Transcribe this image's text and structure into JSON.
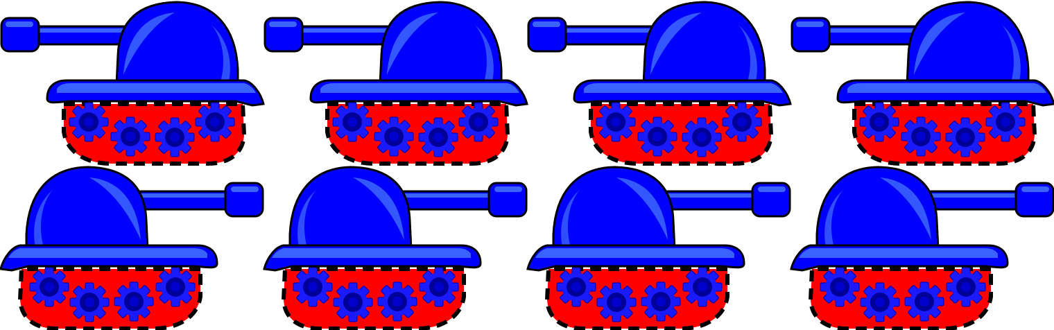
{
  "sheet": {
    "name": "tank-sprite-sheet",
    "frame_count": 8,
    "rows": 2,
    "columns": 4
  },
  "colors": {
    "background": "#ffffff",
    "outline": "#000000",
    "hull_blue": "#0000ff",
    "highlight_blue": "#3a62ff",
    "track_red": "#ff0000",
    "wheel_blue": "#1a1aff",
    "hub_navy": "#000099",
    "hub_center": "#0000cc"
  },
  "frames": [
    {
      "facing": "left"
    },
    {
      "facing": "left"
    },
    {
      "facing": "left"
    },
    {
      "facing": "left"
    },
    {
      "facing": "right"
    },
    {
      "facing": "right"
    },
    {
      "facing": "right"
    },
    {
      "facing": "right"
    }
  ]
}
